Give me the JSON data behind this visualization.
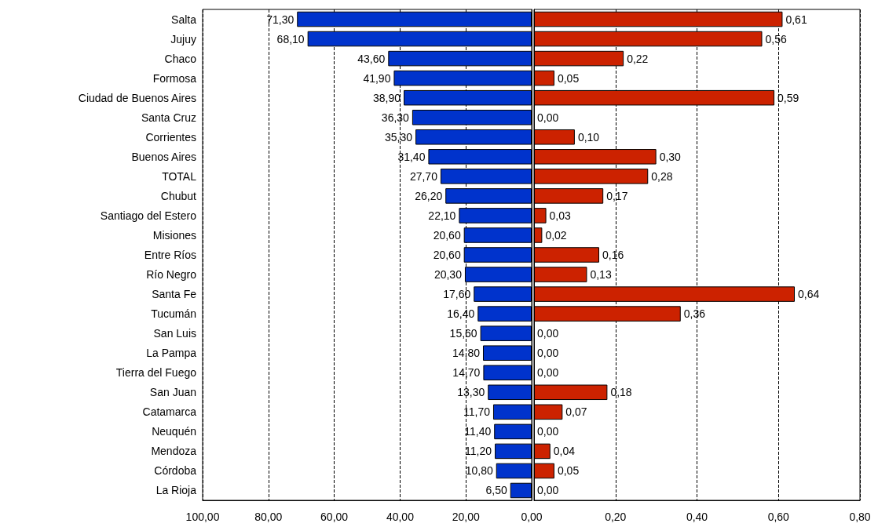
{
  "chart_data": [
    {
      "type": "bar",
      "orientation": "horizontal",
      "grid": "x",
      "categories": [
        "Salta",
        "Jujuy",
        "Chaco",
        "Formosa",
        "Ciudad de Buenos Aires",
        "Santa Cruz",
        "Corrientes",
        "Buenos Aires",
        "TOTAL",
        "Chubut",
        "Santiago del Estero",
        "Misiones",
        "Entre Ríos",
        "Río Negro",
        "Santa Fe",
        "Tucumán",
        "San Luis",
        "La Pampa",
        "Tierra del Fuego",
        "San Juan",
        "Catamarca",
        "Neuquén",
        "Mendoza",
        "Córdoba",
        "La Rioja"
      ],
      "series": [
        {
          "color": "#0033cc",
          "values": [
            71.3,
            68.1,
            43.6,
            41.9,
            38.9,
            36.3,
            35.3,
            31.4,
            27.7,
            26.2,
            22.1,
            20.6,
            20.6,
            20.3,
            17.6,
            16.4,
            15.6,
            14.8,
            14.7,
            13.3,
            11.7,
            11.4,
            11.2,
            10.8,
            6.5
          ],
          "value_labels": [
            "71,30",
            "68,10",
            "43,60",
            "41,90",
            "38,90",
            "36,30",
            "35,30",
            "31,40",
            "27,70",
            "26,20",
            "22,10",
            "20,60",
            "20,60",
            "20,30",
            "17,60",
            "16,40",
            "15,60",
            "14,80",
            "14,70",
            "13,30",
            "11,70",
            "11,40",
            "11,20",
            "10,80",
            "6,50"
          ]
        }
      ],
      "xlim": [
        100,
        0
      ],
      "xticks": [
        {
          "value": 100,
          "label": "100,00"
        },
        {
          "value": 80,
          "label": "80,00"
        },
        {
          "value": 60,
          "label": "60,00"
        },
        {
          "value": 40,
          "label": "40,00"
        },
        {
          "value": 20,
          "label": "20,00"
        },
        {
          "value": 0,
          "label": "0,00"
        }
      ]
    },
    {
      "type": "bar",
      "orientation": "horizontal",
      "grid": "x",
      "tick_labels": "x",
      "categories": [
        null,
        null,
        null,
        null,
        null,
        null,
        null,
        null,
        null,
        null,
        null,
        null,
        null,
        null,
        null,
        null,
        null,
        null,
        null,
        null,
        null,
        null,
        null,
        null,
        null
      ],
      "series": [
        {
          "color": "#cc2200",
          "values": [
            0.61,
            0.56,
            0.22,
            0.05,
            0.59,
            0,
            0.1,
            0.3,
            0.28,
            0.17,
            0.03,
            0.02,
            0.16,
            0.13,
            0.64,
            0.36,
            0,
            0,
            0,
            0.18,
            0.07,
            0,
            0.04,
            0.05,
            0
          ],
          "value_labels": [
            "0,61",
            "0,56",
            "0,22",
            "0,05",
            "0,59",
            "0,00",
            "0,10",
            "0,30",
            "0,28",
            "0,17",
            "0,03",
            "0,02",
            "0,16",
            "0,13",
            "0,64",
            "0,36",
            "0,00",
            "0,00",
            "0,00",
            "0,18",
            "0,07",
            "0,00",
            "0,04",
            "0,05",
            "0,00"
          ]
        }
      ],
      "xlim": [
        0,
        0.8
      ],
      "xticks": [
        {
          "value": 0,
          "label": null
        },
        {
          "value": 0.2,
          "label": "0,20"
        },
        {
          "value": 0.4,
          "label": "0,40"
        },
        {
          "value": 0.6,
          "label": "0,60"
        },
        {
          "value": 0.8,
          "label": "0,80"
        }
      ]
    }
  ]
}
